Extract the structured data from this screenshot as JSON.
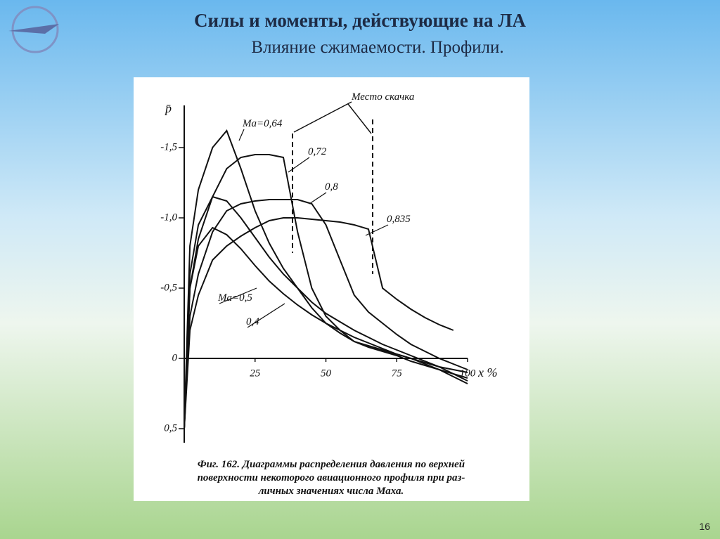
{
  "slide": {
    "title": "Силы и моменты, действующие на ЛА",
    "subtitle": "Влияние сжимаемости. Профили.",
    "page_number": "16"
  },
  "chart_data": {
    "type": "line",
    "x_label": "x %",
    "y_label": "p̄",
    "annotation": "Место скачка",
    "caption": [
      "Фиг. 162. Диаграммы распределения давления по верхней",
      "поверхности некоторого авиационного профиля при раз-",
      "личных значениях числа Маха."
    ],
    "x": [
      0,
      2,
      5,
      10,
      15,
      20,
      25,
      30,
      35,
      40,
      45,
      50,
      55,
      60,
      65,
      70,
      75,
      80,
      85,
      90,
      95,
      100
    ],
    "xlim": [
      0,
      100
    ],
    "xticks": [
      25,
      50,
      75,
      100
    ],
    "ylim": [
      0.6,
      -1.8
    ],
    "yticks": [
      {
        "value": -1.5,
        "label": "-1,5"
      },
      {
        "value": -1.0,
        "label": "-1,0"
      },
      {
        "value": -0.5,
        "label": "-0,5"
      },
      0,
      {
        "value": 0.5,
        "label": "0,5"
      }
    ],
    "series": [
      {
        "name": "0,4",
        "color": "#111111",
        "values": [
          0.5,
          -0.5,
          -0.8,
          -0.93,
          -0.88,
          -0.78,
          -0.66,
          -0.55,
          -0.46,
          -0.38,
          -0.31,
          -0.25,
          -0.2,
          -0.15,
          -0.11,
          -0.07,
          -0.03,
          0.0,
          0.04,
          0.08,
          0.13,
          0.18
        ]
      },
      {
        "name": "Ma=0,5",
        "color": "#111111",
        "values": [
          0.5,
          -0.6,
          -0.95,
          -1.15,
          -1.12,
          -1.0,
          -0.86,
          -0.72,
          -0.6,
          -0.5,
          -0.4,
          -0.32,
          -0.26,
          -0.2,
          -0.15,
          -0.1,
          -0.06,
          -0.02,
          0.02,
          0.06,
          0.11,
          0.16
        ]
      },
      {
        "name": "Ma=0,64",
        "color": "#111111",
        "values": [
          0.5,
          -0.8,
          -1.2,
          -1.5,
          -1.62,
          -1.35,
          -1.05,
          -0.82,
          -0.64,
          -0.5,
          -0.36,
          -0.25,
          -0.18,
          -0.12,
          -0.08,
          -0.05,
          -0.02,
          0.02,
          0.05,
          0.08,
          0.11,
          0.14
        ]
      },
      {
        "name": "0,72",
        "color": "#111111",
        "values": [
          0.5,
          -0.5,
          -0.85,
          -1.15,
          -1.35,
          -1.43,
          -1.45,
          -1.45,
          -1.43,
          -0.9,
          -0.5,
          -0.3,
          -0.2,
          -0.12,
          -0.09,
          -0.06,
          -0.03,
          0.0,
          0.03,
          0.06,
          0.08,
          0.1
        ]
      },
      {
        "name": "0,8",
        "color": "#111111",
        "values": [
          0.5,
          -0.3,
          -0.6,
          -0.9,
          -1.05,
          -1.1,
          -1.12,
          -1.13,
          -1.13,
          -1.13,
          -1.1,
          -0.95,
          -0.7,
          -0.45,
          -0.33,
          -0.25,
          -0.17,
          -0.1,
          -0.05,
          0.0,
          0.04,
          0.08
        ]
      },
      {
        "name": "0,835",
        "color": "#111111",
        "values": [
          0.5,
          -0.2,
          -0.45,
          -0.7,
          -0.8,
          -0.87,
          -0.93,
          -0.98,
          -1.0,
          -1.0,
          -0.99,
          -0.98,
          -0.97,
          -0.95,
          -0.92,
          -0.5,
          -0.42,
          -0.35,
          -0.29,
          -0.24,
          -0.2,
          null
        ]
      }
    ]
  }
}
